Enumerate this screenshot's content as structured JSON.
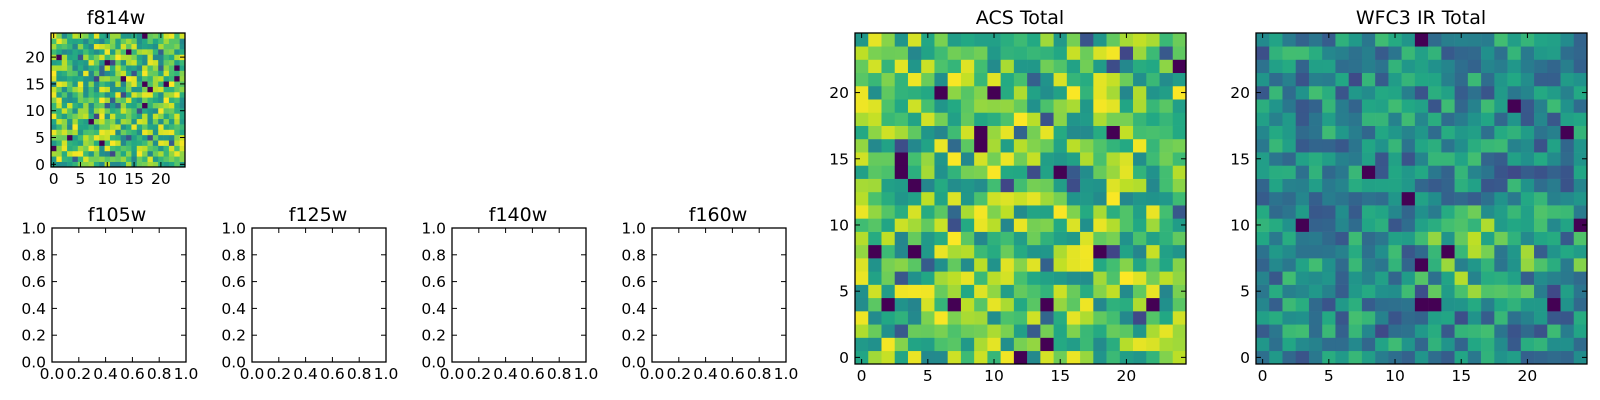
{
  "chart_data": [
    {
      "type": "heatmap",
      "title": "f814w",
      "colormap": "viridis",
      "grid_size": [
        25,
        25
      ],
      "xlim": [
        -0.5,
        24.5
      ],
      "ylim": [
        -0.5,
        24.5
      ],
      "xticks": [
        0,
        5,
        10,
        15,
        20
      ],
      "yticks": [
        0,
        5,
        10,
        15,
        20
      ],
      "xtick_labels": [
        "0",
        "5",
        "10",
        "15",
        "20"
      ],
      "ytick_labels": [
        "0",
        "5",
        "10",
        "15",
        "20"
      ],
      "value_distribution": "random noise, mostly green-yellow, a few dark purple cells",
      "seed": 11,
      "grid": false
    },
    {
      "type": "empty",
      "title": "f105w",
      "xlim": [
        0,
        1
      ],
      "ylim": [
        0,
        1
      ],
      "xtick_labels": [
        "0.0",
        "0.2",
        "0.4",
        "0.6",
        "0.8",
        "1.0"
      ],
      "ytick_labels": [
        "0.0",
        "0.2",
        "0.4",
        "0.6",
        "0.8",
        "1.0"
      ]
    },
    {
      "type": "empty",
      "title": "f125w",
      "xlim": [
        0,
        1
      ],
      "ylim": [
        0,
        1
      ],
      "xtick_labels": [
        "0.0",
        "0.2",
        "0.4",
        "0.6",
        "0.8",
        "1.0"
      ],
      "ytick_labels": [
        "0.0",
        "0.2",
        "0.4",
        "0.6",
        "0.8",
        "1.0"
      ]
    },
    {
      "type": "empty",
      "title": "f140w",
      "xlim": [
        0,
        1
      ],
      "ylim": [
        0,
        1
      ],
      "xtick_labels": [
        "0.0",
        "0.2",
        "0.4",
        "0.6",
        "0.8",
        "1.0"
      ],
      "ytick_labels": [
        "0.0",
        "0.2",
        "0.4",
        "0.6",
        "0.8",
        "1.0"
      ]
    },
    {
      "type": "empty",
      "title": "f160w",
      "xlim": [
        0,
        1
      ],
      "ylim": [
        0,
        1
      ],
      "xtick_labels": [
        "0.0",
        "0.2",
        "0.4",
        "0.6",
        "0.8",
        "1.0"
      ],
      "ytick_labels": [
        "0.0",
        "0.2",
        "0.4",
        "0.6",
        "0.8",
        "1.0"
      ]
    },
    {
      "type": "heatmap",
      "title": "ACS Total",
      "colormap": "viridis",
      "grid_size": [
        25,
        25
      ],
      "xlim": [
        -0.5,
        24.5
      ],
      "ylim": [
        -0.5,
        24.5
      ],
      "xticks": [
        0,
        5,
        10,
        15,
        20
      ],
      "yticks": [
        0,
        5,
        10,
        15,
        20
      ],
      "xtick_labels": [
        "0",
        "5",
        "10",
        "15",
        "20"
      ],
      "ytick_labels": [
        "0",
        "5",
        "10",
        "15",
        "20"
      ],
      "value_distribution": "random noise, mostly green-yellow, a few dark purple cells",
      "seed": 29,
      "grid": false
    },
    {
      "type": "heatmap",
      "title": "WFC3 IR Total",
      "colormap": "viridis",
      "grid_size": [
        25,
        25
      ],
      "xlim": [
        -0.5,
        24.5
      ],
      "ylim": [
        -0.5,
        24.5
      ],
      "xticks": [
        0,
        5,
        10,
        15,
        20
      ],
      "yticks": [
        0,
        5,
        10,
        15,
        20
      ],
      "xtick_labels": [
        "0",
        "5",
        "10",
        "15",
        "20"
      ],
      "ytick_labels": [
        "0",
        "5",
        "10",
        "15",
        "20"
      ],
      "value_distribution": "random noise, mostly teal-green, yellow band near y=5-10 on right",
      "seed": 53,
      "grid": false
    }
  ]
}
